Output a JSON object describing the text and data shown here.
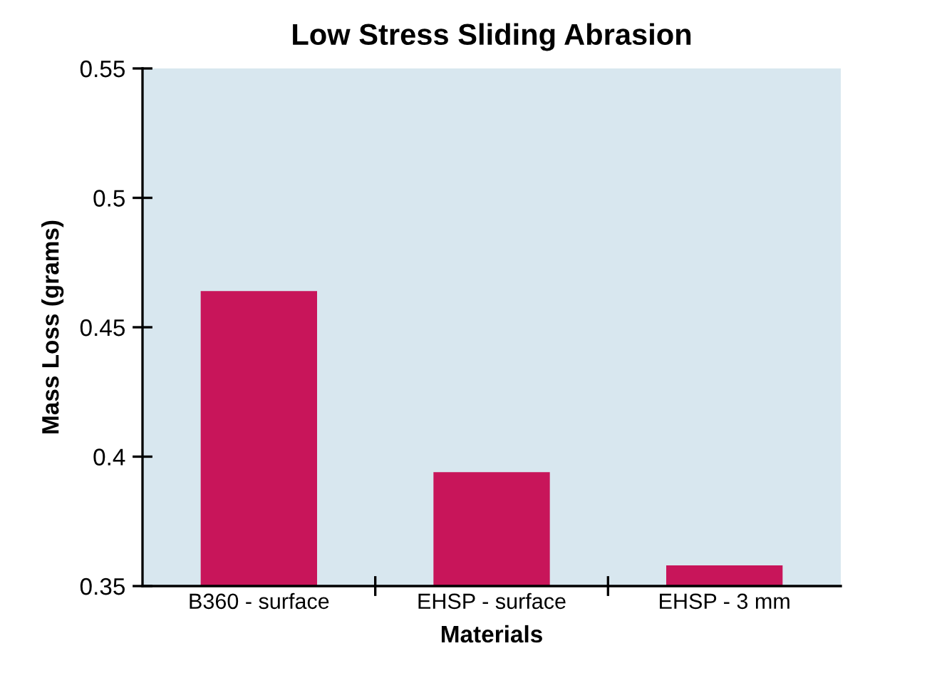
{
  "chart_data": {
    "type": "bar",
    "title": "Low Stress Sliding Abrasion",
    "xlabel": "Materials",
    "ylabel": "Mass Loss (grams)",
    "categories": [
      "B360 - surface",
      "EHSP - surface",
      "EHSP - 3 mm"
    ],
    "values": [
      0.464,
      0.394,
      0.358
    ],
    "color": "#c8155a",
    "ylim": [
      0.35,
      0.55
    ],
    "yticks": [
      0.35,
      0.4,
      0.45,
      0.5,
      0.55
    ],
    "grid": false
  }
}
